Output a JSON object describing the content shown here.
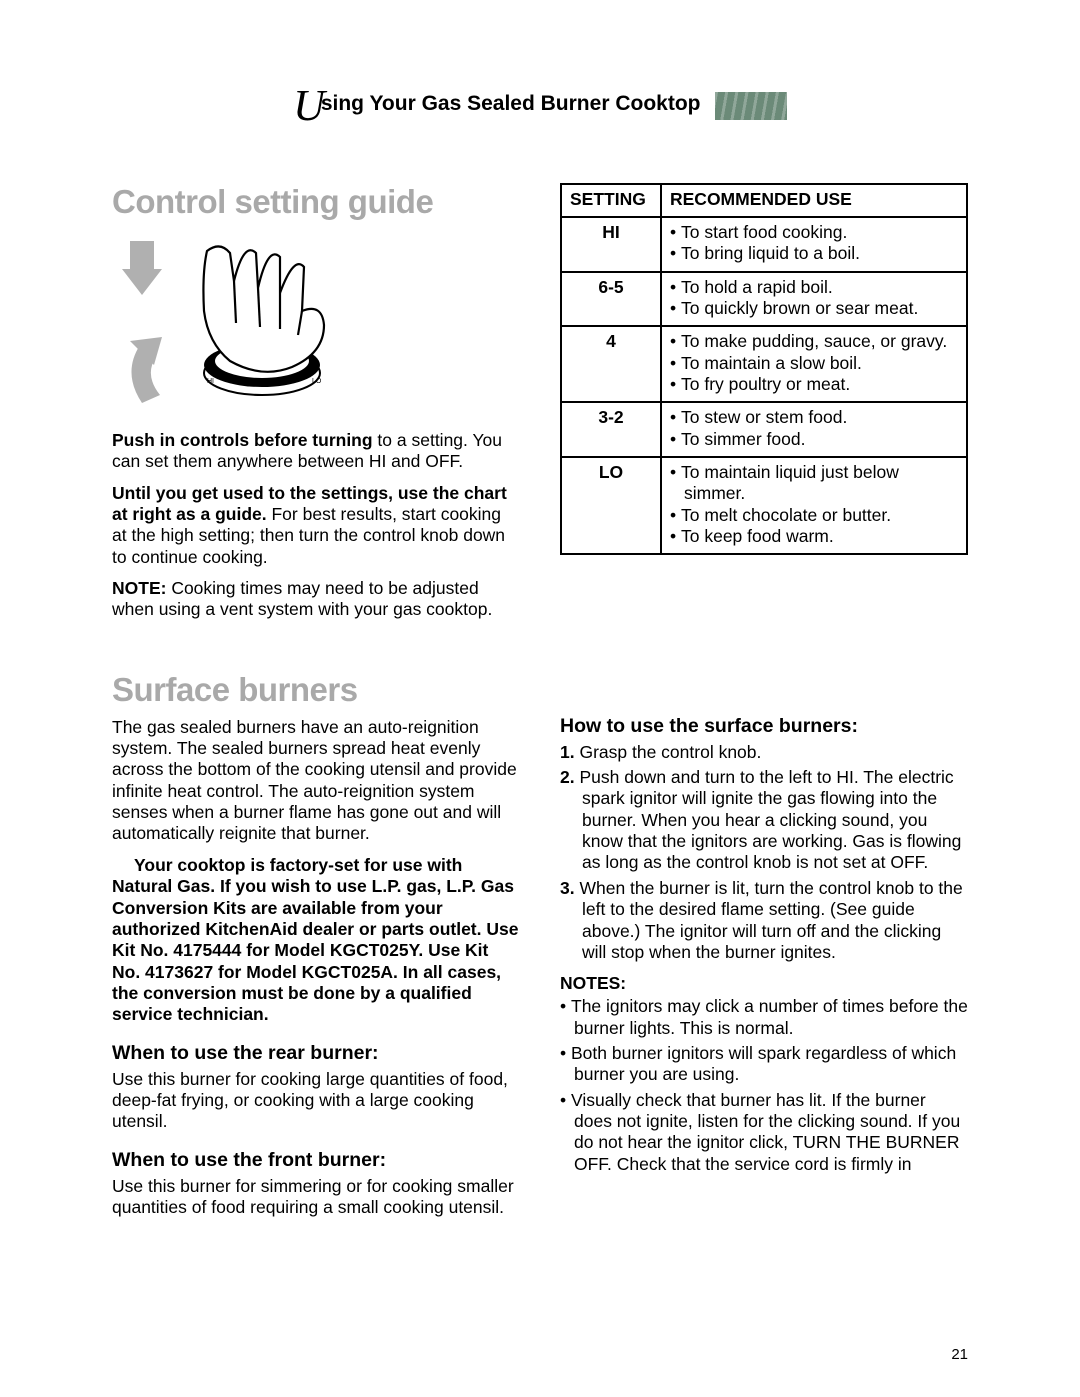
{
  "header": {
    "dropcap": "U",
    "title_rest": "sing Your Gas Sealed Burner Cooktop"
  },
  "section1": {
    "title": "Control setting guide",
    "para1_bold": "Push in controls before turning",
    "para1_rest": " to a setting. You can set them anywhere between HI and OFF.",
    "para2_bold": "Until you get used to the settings, use the chart at right as a guide.",
    "para2_rest": " For best results, start cooking at the high setting; then turn the control knob down to continue cooking.",
    "para3_bold": "NOTE:",
    "para3_rest": " Cooking times may need to be adjusted when using a vent system with your gas cooktop."
  },
  "table": {
    "col1": "SETTING",
    "col2": "RECOMMENDED USE",
    "rows": [
      {
        "setting": "HI",
        "uses": [
          "To start food cooking.",
          "To bring liquid to a boil."
        ]
      },
      {
        "setting": "6-5",
        "uses": [
          "To hold a rapid boil.",
          "To quickly brown or sear meat."
        ]
      },
      {
        "setting": "4",
        "uses": [
          "To make pudding, sauce, or gravy.",
          "To maintain a slow boil.",
          "To fry poultry or meat."
        ]
      },
      {
        "setting": "3-2",
        "uses": [
          "To stew or stem food.",
          "To simmer food."
        ]
      },
      {
        "setting": "LO",
        "uses": [
          "To maintain liquid just below simmer.",
          "To melt chocolate or butter.",
          "To keep food warm."
        ]
      }
    ]
  },
  "section2": {
    "title": "Surface burners",
    "intro": "The gas sealed burners have an auto-reignition system. The sealed burners spread heat evenly across the bottom of the cooking utensil and provide infinite heat control. The auto-reignition system senses when a burner flame has gone out and will automatically reignite that burner.",
    "factory": "Your cooktop is factory-set for use with Natural Gas. If you wish to use L.P. gas, L.P. Gas Conversion Kits are available from your authorized KitchenAid dealer or parts outlet. Use Kit No. 4175444 for Model KGCT025Y. Use Kit No. 4173627 for Model KGCT025A. In all cases, the conversion must be done by a qualified service technician.",
    "rear_title": "When to use the rear burner:",
    "rear_body": "Use this burner for cooking large quantities of food, deep-fat frying, or cooking with a large cooking utensil.",
    "front_title": "When to use the front burner:",
    "front_body": "Use this burner for simmering or for cooking smaller quantities of food requiring a small cooking utensil.",
    "howto_title": "How to use the surface burners:",
    "steps": [
      {
        "num": "1.",
        "bold": "Grasp",
        "rest": " the control knob."
      },
      {
        "num": "2.",
        "bold": "Push down",
        "mid": " and ",
        "bold2": "turn",
        "rest": " to the left to HI. The electric spark ignitor will ignite the gas flowing into the burner. When you hear a clicking sound, you know that the ignitors are working. Gas is flowing as long as the control knob is not set at OFF."
      },
      {
        "num": "3.",
        "bold": "When the burner is lit, turn",
        "rest": " the control knob to the left to the desired flame setting. (See guide above.) The ignitor will turn off and the clicking will stop when the burner ignites."
      }
    ],
    "notes_label": "NOTES:",
    "notes": [
      {
        "bold": "The ignitors",
        "rest": " may click a number of times before the burner lights. This is normal."
      },
      {
        "bold": "Both burner ignitors",
        "rest": " will spark regardless of which burner you are using."
      },
      {
        "bold": "Visually check",
        "rest": " that burner has lit. If the burner does not ignite, listen for the clicking sound. If you do not hear the ignitor click, ",
        "bold2": "TURN THE BURNER OFF.",
        "rest2": " Check that the service cord is firmly in"
      }
    ]
  },
  "page_number": "21"
}
